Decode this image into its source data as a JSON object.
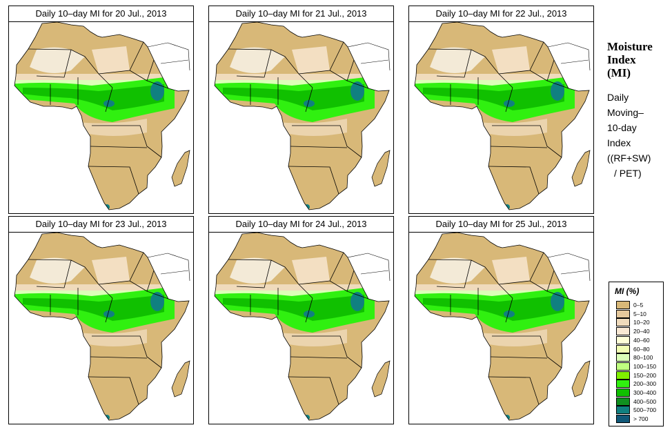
{
  "panels": [
    {
      "title": "Daily 10–day MI for  20 Jul., 2013"
    },
    {
      "title": "Daily 10–day MI for  21 Jul., 2013"
    },
    {
      "title": "Daily 10–day MI for  22 Jul., 2013"
    },
    {
      "title": "Daily 10–day MI for  23 Jul., 2013"
    },
    {
      "title": "Daily 10–day MI for  24 Jul., 2013"
    },
    {
      "title": "Daily 10–day MI for  25 Jul., 2013"
    }
  ],
  "side": {
    "title_lines": [
      "Moisture",
      "Index",
      "(MI)"
    ],
    "desc_lines": [
      "Daily",
      "Moving–",
      "10-day",
      "Index"
    ],
    "formula_lines": [
      "((RF+SW)",
      "/ PET)"
    ]
  },
  "legend": {
    "title": "MI (%)",
    "items": [
      {
        "label": "0–5",
        "color": "#d8b878"
      },
      {
        "label": "5–10",
        "color": "#e6c99c"
      },
      {
        "label": "10–20",
        "color": "#f0dbbc"
      },
      {
        "label": "20–40",
        "color": "#fae9d4"
      },
      {
        "label": "40–60",
        "color": "#ffffd8"
      },
      {
        "label": "60–80",
        "color": "#f2ffb4"
      },
      {
        "label": "80–100",
        "color": "#dcffb8"
      },
      {
        "label": "100–150",
        "color": "#c0ff80"
      },
      {
        "label": "150–200",
        "color": "#80f000"
      },
      {
        "label": "200–300",
        "color": "#30f010"
      },
      {
        "label": "300–400",
        "color": "#10c000"
      },
      {
        "label": "400–500",
        "color": "#109020"
      },
      {
        "label": "500–700",
        "color": "#108080"
      },
      {
        "label": "> 700",
        "color": "#105878"
      }
    ]
  }
}
